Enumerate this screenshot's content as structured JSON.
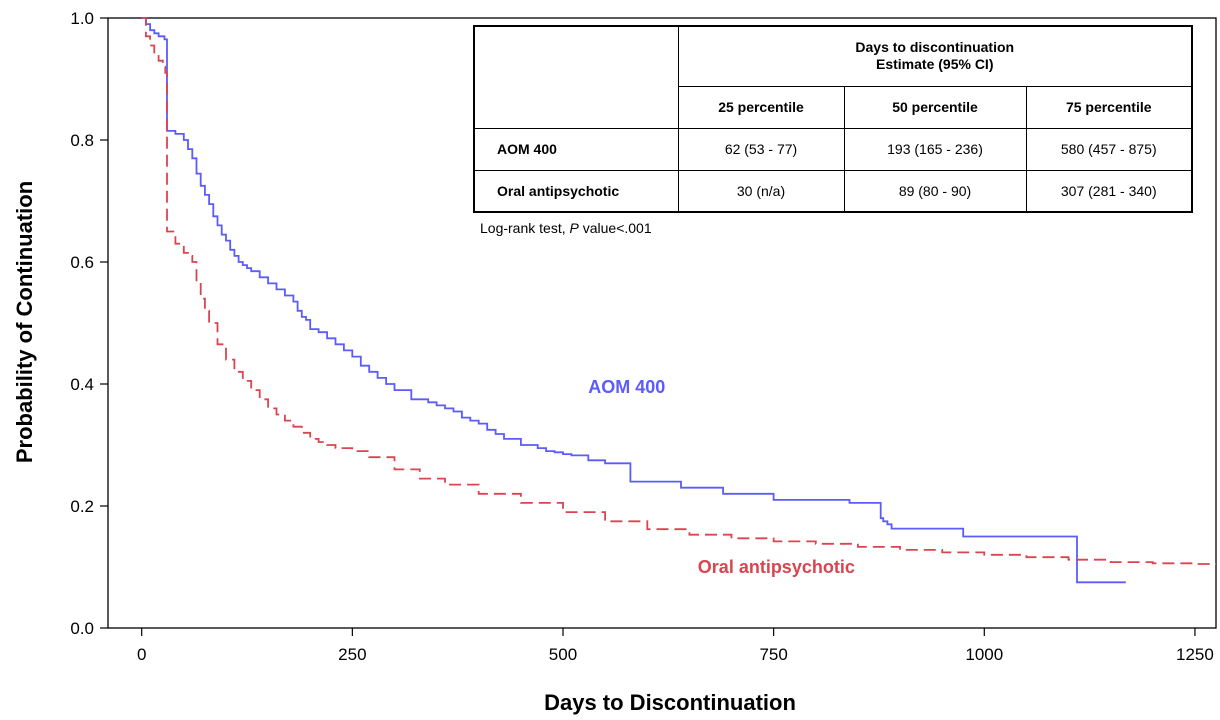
{
  "chart_data": {
    "type": "line",
    "title": "",
    "xlabel": "Days to Discontinuation",
    "ylabel": "Probability of Continuation",
    "xlim": [
      -40,
      1275
    ],
    "ylim": [
      0,
      1.0
    ],
    "xticks": [
      0,
      250,
      500,
      750,
      1000,
      1250
    ],
    "yticks": [
      0.0,
      0.2,
      0.4,
      0.6,
      0.8,
      1.0
    ],
    "xtick_labels": [
      "0",
      "250",
      "500",
      "750",
      "1000",
      "1250"
    ],
    "ytick_labels": [
      "0.0",
      "0.2",
      "0.4",
      "0.6",
      "0.8",
      "1.0"
    ],
    "grid": false,
    "series": [
      {
        "name": "AOM 400",
        "color": "#5b5bff",
        "style": "solid",
        "step": true,
        "x": [
          0,
          5,
          10,
          15,
          20,
          27,
          30,
          40,
          50,
          55,
          60,
          65,
          70,
          75,
          80,
          85,
          90,
          95,
          100,
          105,
          110,
          115,
          120,
          125,
          130,
          140,
          150,
          160,
          170,
          180,
          185,
          190,
          195,
          200,
          210,
          220,
          230,
          240,
          250,
          260,
          270,
          280,
          290,
          300,
          320,
          340,
          350,
          360,
          370,
          380,
          390,
          400,
          410,
          420,
          430,
          450,
          470,
          480,
          490,
          500,
          510,
          530,
          550,
          580,
          640,
          690,
          750,
          840,
          877,
          880,
          885,
          890,
          975,
          1110,
          1168
        ],
        "y": [
          1.0,
          0.99,
          0.98,
          0.975,
          0.97,
          0.965,
          0.815,
          0.81,
          0.8,
          0.785,
          0.77,
          0.745,
          0.725,
          0.71,
          0.695,
          0.675,
          0.66,
          0.645,
          0.635,
          0.62,
          0.61,
          0.6,
          0.595,
          0.59,
          0.585,
          0.575,
          0.565,
          0.555,
          0.545,
          0.535,
          0.52,
          0.51,
          0.505,
          0.49,
          0.485,
          0.475,
          0.465,
          0.455,
          0.445,
          0.43,
          0.42,
          0.41,
          0.4,
          0.39,
          0.375,
          0.37,
          0.365,
          0.36,
          0.355,
          0.345,
          0.34,
          0.335,
          0.325,
          0.318,
          0.31,
          0.3,
          0.295,
          0.29,
          0.288,
          0.285,
          0.283,
          0.275,
          0.27,
          0.24,
          0.23,
          0.22,
          0.21,
          0.205,
          0.18,
          0.175,
          0.17,
          0.163,
          0.15,
          0.075,
          0.075
        ]
      },
      {
        "name": "Oral antipsychotic",
        "color": "#d9454f",
        "style": "dashed",
        "step": true,
        "x": [
          0,
          5,
          10,
          15,
          20,
          25,
          28,
          30,
          40,
          50,
          55,
          60,
          65,
          70,
          75,
          80,
          90,
          100,
          110,
          120,
          130,
          140,
          150,
          160,
          170,
          180,
          190,
          200,
          210,
          220,
          230,
          250,
          270,
          300,
          330,
          360,
          400,
          450,
          500,
          550,
          600,
          650,
          700,
          750,
          800,
          850,
          900,
          950,
          1000,
          1050,
          1100,
          1150,
          1200,
          1250,
          1275
        ],
        "y": [
          1.0,
          0.97,
          0.955,
          0.94,
          0.93,
          0.92,
          0.91,
          0.65,
          0.63,
          0.615,
          0.61,
          0.6,
          0.57,
          0.54,
          0.52,
          0.5,
          0.465,
          0.44,
          0.42,
          0.405,
          0.39,
          0.375,
          0.36,
          0.35,
          0.34,
          0.33,
          0.32,
          0.31,
          0.305,
          0.3,
          0.295,
          0.29,
          0.28,
          0.26,
          0.245,
          0.235,
          0.22,
          0.205,
          0.19,
          0.175,
          0.162,
          0.153,
          0.147,
          0.142,
          0.138,
          0.133,
          0.128,
          0.124,
          0.12,
          0.116,
          0.112,
          0.108,
          0.106,
          0.105,
          0.105
        ]
      }
    ],
    "annotations": [
      {
        "text": "AOM 400",
        "x": 530,
        "y": 0.385,
        "color": "#5b5bff"
      },
      {
        "text": "Oral antipsychotic",
        "x": 660,
        "y": 0.09,
        "color": "#d9454f"
      }
    ]
  },
  "table": {
    "header_top": "Days to discontinuation",
    "header_sub": "Estimate (95% CI)",
    "columns": [
      "25 percentile",
      "50 percentile",
      "75 percentile"
    ],
    "rows": [
      {
        "label": "AOM 400",
        "values": [
          "62 (53 - 77)",
          "193 (165 - 236)",
          "580 (457 - 875)"
        ]
      },
      {
        "label": "Oral antipsychotic",
        "values": [
          "30 (n/a)",
          "89 (80 - 90)",
          "307 (281 - 340)"
        ]
      }
    ]
  },
  "footnote": {
    "prefix": "Log-rank test, ",
    "p_symbol": "P",
    "suffix": " value<.001"
  }
}
